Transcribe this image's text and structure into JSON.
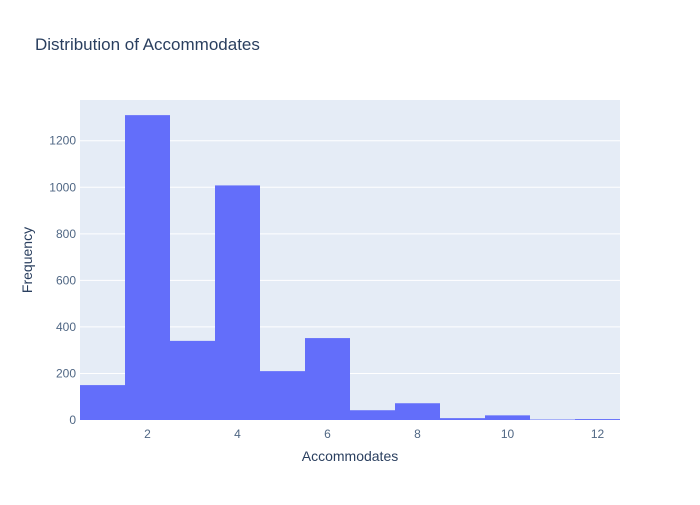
{
  "chart_data": {
    "type": "bar",
    "title": "Distribution of Accommodates",
    "xlabel": "Accommodates",
    "ylabel": "Frequency",
    "xlim": [
      0.5,
      12.5
    ],
    "ylim": [
      0,
      1375
    ],
    "xticks": [
      2,
      4,
      6,
      8,
      10,
      12
    ],
    "yticks": [
      0,
      200,
      400,
      600,
      800,
      1000,
      1200
    ],
    "grid": true,
    "bins": [
      {
        "x0": 0.5,
        "x1": 1.5,
        "value": 150
      },
      {
        "x0": 1.5,
        "x1": 2.5,
        "value": 1310
      },
      {
        "x0": 2.5,
        "x1": 3.5,
        "value": 340
      },
      {
        "x0": 3.5,
        "x1": 4.5,
        "value": 1008
      },
      {
        "x0": 4.5,
        "x1": 5.5,
        "value": 210
      },
      {
        "x0": 5.5,
        "x1": 6.5,
        "value": 352
      },
      {
        "x0": 6.5,
        "x1": 7.5,
        "value": 42
      },
      {
        "x0": 7.5,
        "x1": 8.5,
        "value": 72
      },
      {
        "x0": 8.5,
        "x1": 9.5,
        "value": 8
      },
      {
        "x0": 9.5,
        "x1": 10.5,
        "value": 20
      },
      {
        "x0": 10.5,
        "x1": 11.5,
        "value": 2
      },
      {
        "x0": 11.5,
        "x1": 12.5,
        "value": 4
      }
    ],
    "colors": {
      "bar": "#636efa",
      "plot_bg": "#e5ecf6",
      "grid": "#ffffff",
      "text": "#2a3f5f",
      "tick_text": "#506784"
    }
  }
}
